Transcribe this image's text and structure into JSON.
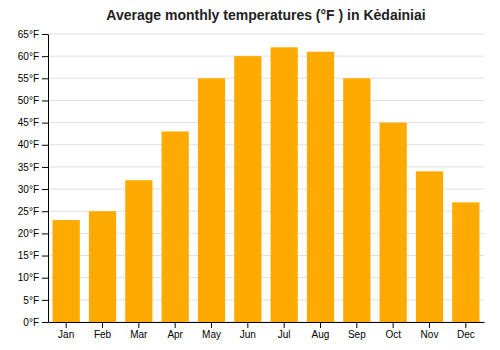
{
  "chart_data": {
    "type": "bar",
    "title": "Average monthly temperatures (°F ) in Kėdainiai",
    "categories": [
      "Jan",
      "Feb",
      "Mar",
      "Apr",
      "May",
      "Jun",
      "Jul",
      "Aug",
      "Sep",
      "Oct",
      "Nov",
      "Dec"
    ],
    "values": [
      23,
      25,
      32,
      43,
      55,
      60,
      62,
      61,
      55,
      45,
      34,
      27
    ],
    "color": "#FFAA00",
    "ylim": [
      0,
      65
    ],
    "yticks": [
      {
        "value": 0,
        "label": "0°F"
      },
      {
        "value": 5,
        "label": "5°F"
      },
      {
        "value": 10,
        "label": "10°F"
      },
      {
        "value": 15,
        "label": "15°F"
      },
      {
        "value": 20,
        "label": "20°F"
      },
      {
        "value": 25,
        "label": "25°F"
      },
      {
        "value": 30,
        "label": "30°F"
      },
      {
        "value": 35,
        "label": "35°F"
      },
      {
        "value": 40,
        "label": "40°F"
      },
      {
        "value": 45,
        "label": "45°F"
      },
      {
        "value": 50,
        "label": "50°F"
      },
      {
        "value": 55,
        "label": "55°F"
      },
      {
        "value": 60,
        "label": "60°F"
      },
      {
        "value": 65,
        "label": "65°F"
      }
    ],
    "grid": true
  }
}
